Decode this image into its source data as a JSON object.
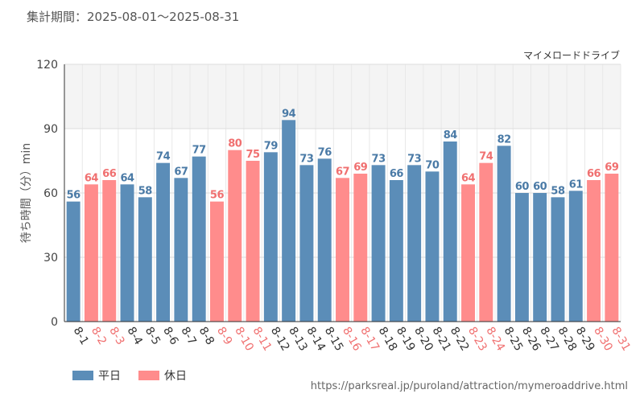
{
  "header": {
    "period": "集計期間：2025-08-01～2025-08-31",
    "attraction": "マイメロードドライブ"
  },
  "chart_data": {
    "type": "bar",
    "title": "マイメロードドライブ",
    "ylabel": "待ち時間（分）min",
    "xlabel": "",
    "ylim": [
      0,
      120
    ],
    "yticks": [
      0,
      30,
      60,
      90,
      120
    ],
    "categories": [
      "8-1",
      "8-2",
      "8-3",
      "8-4",
      "8-5",
      "8-6",
      "8-7",
      "8-8",
      "8-9",
      "8-10",
      "8-11",
      "8-12",
      "8-13",
      "8-14",
      "8-15",
      "8-16",
      "8-17",
      "8-18",
      "8-19",
      "8-20",
      "8-21",
      "8-22",
      "8-23",
      "8-24",
      "8-25",
      "8-26",
      "8-27",
      "8-28",
      "8-29",
      "8-30",
      "8-31"
    ],
    "values": [
      56,
      64,
      66,
      64,
      58,
      74,
      67,
      77,
      56,
      80,
      75,
      79,
      94,
      73,
      76,
      67,
      69,
      73,
      66,
      73,
      70,
      84,
      64,
      74,
      82,
      60,
      60,
      58,
      61,
      66,
      69
    ],
    "day_type": [
      "weekday",
      "holiday",
      "holiday",
      "weekday",
      "weekday",
      "weekday",
      "weekday",
      "weekday",
      "holiday",
      "holiday",
      "holiday",
      "weekday",
      "weekday",
      "weekday",
      "weekday",
      "holiday",
      "holiday",
      "weekday",
      "weekday",
      "weekday",
      "weekday",
      "weekday",
      "holiday",
      "holiday",
      "weekday",
      "weekday",
      "weekday",
      "weekday",
      "weekday",
      "holiday",
      "holiday"
    ],
    "series": [
      {
        "name": "平日",
        "key": "weekday",
        "color": "#5b8db8"
      },
      {
        "name": "休日",
        "key": "holiday",
        "color": "#ff8c8c"
      }
    ],
    "label_colors": {
      "weekday": "#4a7aa6",
      "holiday": "#f07070"
    },
    "shaded_band": [
      90,
      120
    ]
  },
  "legend": {
    "weekday": "平日",
    "holiday": "休日"
  },
  "footer": {
    "source": "https://parksreal.jp/puroland/attraction/mymeroaddrive.html"
  }
}
